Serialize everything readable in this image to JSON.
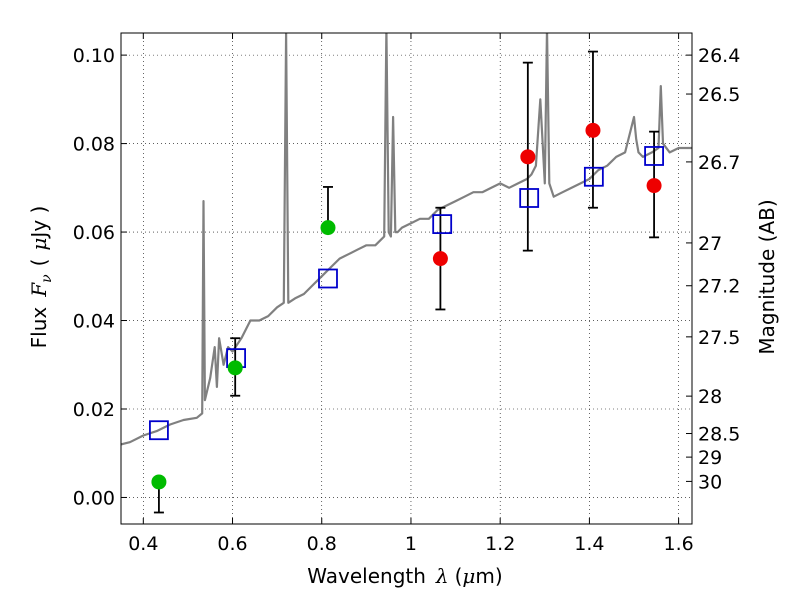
{
  "chart_data": {
    "type": "scatter",
    "title": "",
    "xlabel": {
      "prefix": "Wavelength",
      "symbol": "λ",
      "unit_open": "(",
      "unit_mu": "μ",
      "unit_rest": "m)"
    },
    "ylabel": {
      "prefix": "Flux",
      "symbol": "F",
      "subscript": "ν",
      "unit_open": "(",
      "unit_mu": "μ",
      "unit_rest": "Jy )"
    },
    "y2label": "Magnitude (AB)",
    "xlim": [
      0.35,
      1.63
    ],
    "ylim": [
      -0.006,
      0.105
    ],
    "grid": true,
    "x_ticks": [
      {
        "value": 0.4,
        "label": "0.4"
      },
      {
        "value": 0.6,
        "label": "0.6"
      },
      {
        "value": 0.8,
        "label": "0.8"
      },
      {
        "value": 1.0,
        "label": "1"
      },
      {
        "value": 1.2,
        "label": "1.2"
      },
      {
        "value": 1.4,
        "label": "1.4"
      },
      {
        "value": 1.6,
        "label": "1.6"
      }
    ],
    "y_ticks": [
      {
        "value": 0.0,
        "label": "0.00"
      },
      {
        "value": 0.02,
        "label": "0.02"
      },
      {
        "value": 0.04,
        "label": "0.04"
      },
      {
        "value": 0.06,
        "label": "0.06"
      },
      {
        "value": 0.08,
        "label": "0.08"
      },
      {
        "value": 0.1,
        "label": "0.10"
      }
    ],
    "y2_ticks": [
      {
        "value": 26.4,
        "label": "26.4"
      },
      {
        "value": 26.5,
        "label": "26.5"
      },
      {
        "value": 26.7,
        "label": "26.7"
      },
      {
        "value": 27,
        "label": "27"
      },
      {
        "value": 27.2,
        "label": "27.2"
      },
      {
        "value": 27.5,
        "label": "27.5"
      },
      {
        "value": 28,
        "label": "28"
      },
      {
        "value": 28.5,
        "label": "28.5"
      },
      {
        "value": 29,
        "label": "29"
      },
      {
        "value": 30,
        "label": "30"
      }
    ],
    "spectrum": {
      "color": "#808080",
      "x": [
        0.35,
        0.37,
        0.4,
        0.43,
        0.46,
        0.49,
        0.52,
        0.532,
        0.535,
        0.538,
        0.55,
        0.56,
        0.565,
        0.57,
        0.58,
        0.59,
        0.6,
        0.62,
        0.64,
        0.66,
        0.68,
        0.7,
        0.715,
        0.72,
        0.725,
        0.74,
        0.76,
        0.78,
        0.8,
        0.82,
        0.84,
        0.86,
        0.88,
        0.9,
        0.92,
        0.94,
        0.945,
        0.95,
        0.955,
        0.96,
        0.965,
        0.97,
        0.98,
        1.0,
        1.02,
        1.04,
        1.06,
        1.08,
        1.1,
        1.12,
        1.14,
        1.16,
        1.18,
        1.2,
        1.22,
        1.24,
        1.26,
        1.27,
        1.28,
        1.29,
        1.3,
        1.305,
        1.31,
        1.32,
        1.34,
        1.36,
        1.38,
        1.4,
        1.42,
        1.44,
        1.46,
        1.48,
        1.5,
        1.505,
        1.51,
        1.52,
        1.54,
        1.555,
        1.56,
        1.565,
        1.58,
        1.6,
        1.63
      ],
      "y": [
        0.012,
        0.0125,
        0.014,
        0.015,
        0.0165,
        0.0175,
        0.018,
        0.019,
        0.067,
        0.022,
        0.027,
        0.034,
        0.025,
        0.036,
        0.03,
        0.034,
        0.033,
        0.036,
        0.04,
        0.04,
        0.041,
        0.043,
        0.044,
        0.105,
        0.044,
        0.045,
        0.046,
        0.048,
        0.05,
        0.052,
        0.054,
        0.055,
        0.056,
        0.057,
        0.057,
        0.059,
        0.106,
        0.06,
        0.059,
        0.086,
        0.06,
        0.06,
        0.061,
        0.062,
        0.063,
        0.063,
        0.065,
        0.066,
        0.067,
        0.068,
        0.069,
        0.069,
        0.07,
        0.071,
        0.07,
        0.071,
        0.072,
        0.073,
        0.075,
        0.09,
        0.071,
        0.106,
        0.071,
        0.068,
        0.069,
        0.07,
        0.071,
        0.072,
        0.074,
        0.075,
        0.077,
        0.078,
        0.086,
        0.081,
        0.078,
        0.077,
        0.078,
        0.079,
        0.093,
        0.08,
        0.078,
        0.079,
        0.079
      ]
    },
    "series": [
      {
        "marker": "square",
        "color": "#0000cc",
        "x": [
          0.435,
          0.608,
          0.814,
          1.07,
          1.265,
          1.41,
          1.545
        ],
        "y": [
          0.0152,
          0.0315,
          0.0495,
          0.0618,
          0.0677,
          0.0725,
          0.0772
        ]
      },
      {
        "marker": "circle",
        "color": "#00bb00",
        "x": [
          0.435,
          0.606,
          0.814
        ],
        "y": [
          0.0035,
          0.0293,
          0.061
        ],
        "yerr_low": [
          0.0069,
          0.0063,
          0.0
        ],
        "yerr_high": [
          0.0,
          0.0067,
          0.0092
        ]
      },
      {
        "marker": "circle",
        "color": "#ee0000",
        "x": [
          1.066,
          1.262,
          1.408,
          1.545
        ],
        "y": [
          0.054,
          0.077,
          0.083,
          0.0705
        ],
        "yerr_low": [
          0.0115,
          0.0212,
          0.0175,
          0.0117
        ],
        "yerr_high": [
          0.0115,
          0.0213,
          0.0178,
          0.0122
        ]
      }
    ]
  }
}
